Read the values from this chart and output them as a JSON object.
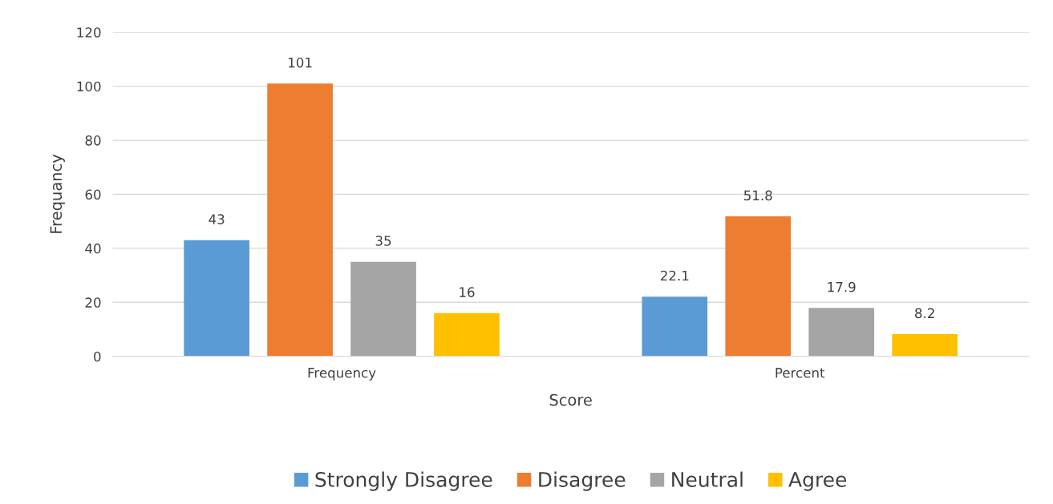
{
  "chart_data": {
    "type": "bar",
    "xlabel": "Score",
    "ylabel": "Frequancy",
    "categories": [
      "Frequency",
      "Percent"
    ],
    "series": [
      {
        "name": "Strongly Disagree",
        "color": "#5b9bd5",
        "values": [
          43,
          22.1
        ]
      },
      {
        "name": "Disagree",
        "color": "#ed7d31",
        "values": [
          101,
          51.8
        ]
      },
      {
        "name": "Neutral",
        "color": "#a5a5a5",
        "values": [
          35,
          17.9
        ]
      },
      {
        "name": "Agree",
        "color": "#ffc000",
        "values": [
          16,
          8.2
        ]
      }
    ],
    "ylim": [
      0,
      120
    ],
    "yticks": [
      0,
      20,
      40,
      60,
      80,
      100,
      120
    ],
    "grid": "y",
    "legend": "bottom",
    "data_labels": true
  }
}
